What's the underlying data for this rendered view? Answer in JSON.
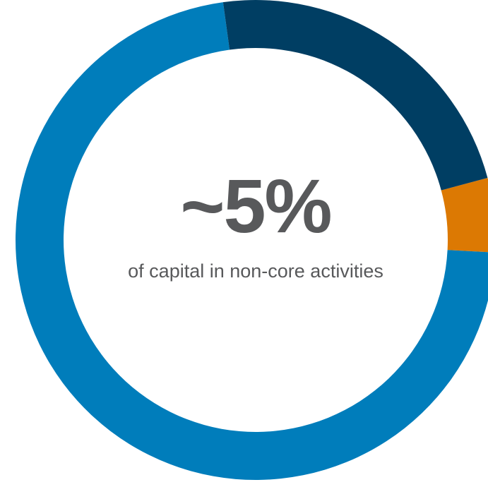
{
  "chart_data": {
    "type": "pie",
    "style": "donut",
    "segments": [
      {
        "value": 5,
        "color": "#dc7903"
      },
      {
        "value": 72,
        "color": "#007dbb"
      },
      {
        "value": 23,
        "color": "#003e63"
      }
    ],
    "center": {
      "value_label": "~5%",
      "caption": "of capital in non-core activities"
    }
  },
  "colors": {
    "number_text": "#58595b",
    "background": "#ffffff"
  }
}
